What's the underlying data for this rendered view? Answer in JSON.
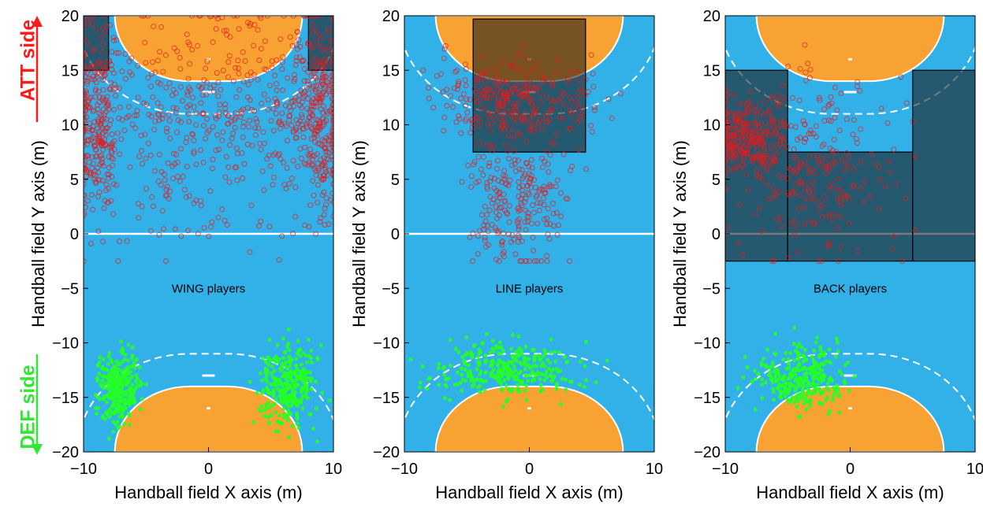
{
  "side_labels": {
    "att": "ATT side",
    "def": "DEF side"
  },
  "colors": {
    "court": "#32b1e8",
    "goal_area": "#f7a232",
    "att_track": "#e61919",
    "def_track": "#24ff24",
    "zone_fill": "#1a1a1a",
    "att_arrow": "#ff1a1a",
    "def_arrow": "#33e633"
  },
  "chart_data": [
    {
      "type": "scatter",
      "title": "WING players",
      "xlabel": "Handball field X axis (m)",
      "ylabel": "Handball field Y axis (m)",
      "xlim": [
        -10,
        10
      ],
      "ylim": [
        -20,
        20
      ],
      "x_ticks": [
        "-10",
        "0",
        "10"
      ],
      "y_ticks": [
        "-20",
        "-15",
        "-10",
        "-5",
        "0",
        "5",
        "10",
        "15",
        "20"
      ],
      "zones": [
        {
          "x": [
            -10,
            -8
          ],
          "y": [
            15,
            20
          ]
        },
        {
          "x": [
            8,
            10
          ],
          "y": [
            15,
            20
          ]
        }
      ],
      "att_clusters": [
        {
          "x": -9,
          "y": 11,
          "sx": 1.0,
          "sy": 4.5
        },
        {
          "x": 8.8,
          "y": 11,
          "sx": 1.0,
          "sy": 4.5
        },
        {
          "x": -3,
          "y": 9,
          "sx": 4.5,
          "sy": 5.5
        },
        {
          "x": 5,
          "y": 12,
          "sx": 4,
          "sy": 4
        }
      ],
      "def_clusters": [
        {
          "x": -7.2,
          "y": -14.2,
          "sx": 0.8,
          "sy": 1.6
        },
        {
          "x": 6.5,
          "y": -13.8,
          "sx": 1.1,
          "sy": 1.8
        }
      ]
    },
    {
      "type": "scatter",
      "title": "LINE players",
      "xlabel": "Handball field X axis (m)",
      "ylabel": "Handball field Y axis (m)",
      "xlim": [
        -10,
        10
      ],
      "ylim": [
        -20,
        20
      ],
      "x_ticks": [
        "-10",
        "0",
        "10"
      ],
      "y_ticks": [
        "-20",
        "-15",
        "-10",
        "-5",
        "0",
        "5",
        "10",
        "15",
        "20"
      ],
      "zones": [
        {
          "x": [
            -4.5,
            4.5
          ],
          "y": [
            7.5,
            19.7
          ]
        }
      ],
      "att_clusters": [
        {
          "x": -1,
          "y": 12.5,
          "sx": 3.5,
          "sy": 1.8
        },
        {
          "x": -1,
          "y": 4,
          "sx": 2,
          "sy": 4
        }
      ],
      "def_clusters": [
        {
          "x": -1.5,
          "y": -12.5,
          "sx": 3,
          "sy": 1.2
        }
      ]
    },
    {
      "type": "scatter",
      "title": "BACK players",
      "xlabel": "Handball field X axis (m)",
      "ylabel": "Handball field Y axis (m)",
      "xlim": [
        -10,
        10
      ],
      "ylim": [
        -20,
        20
      ],
      "x_ticks": [
        "-10",
        "0",
        "10"
      ],
      "y_ticks": [
        "-20",
        "-15",
        "-10",
        "-5",
        "0",
        "5",
        "10",
        "15",
        "20"
      ],
      "zones": [
        {
          "x": [
            -10,
            -5
          ],
          "y": [
            -2.5,
            15
          ]
        },
        {
          "x": [
            5,
            10
          ],
          "y": [
            -2.5,
            15
          ]
        },
        {
          "x": [
            -5,
            5
          ],
          "y": [
            -2.5,
            7.5
          ]
        }
      ],
      "att_clusters": [
        {
          "x": -8.5,
          "y": 9,
          "sx": 1.5,
          "sy": 1.5
        },
        {
          "x": -3,
          "y": 6,
          "sx": 3.5,
          "sy": 4
        }
      ],
      "def_clusters": [
        {
          "x": -4,
          "y": -13,
          "sx": 1.8,
          "sy": 1.5
        }
      ]
    }
  ]
}
